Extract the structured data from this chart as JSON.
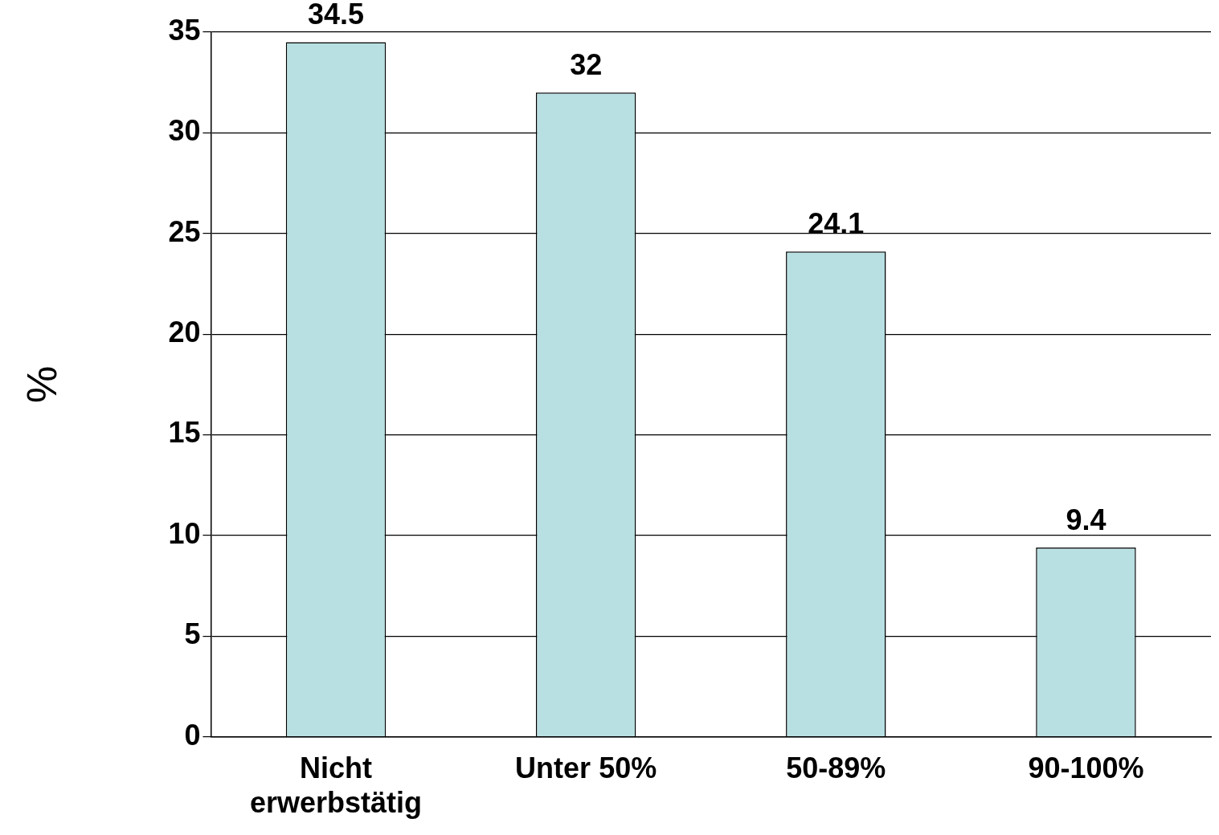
{
  "chart_data": {
    "type": "bar",
    "ylabel": "%",
    "categories": [
      "Nicht erwerbstätig",
      "Unter 50%",
      "50-89%",
      "90-100%"
    ],
    "values": [
      34.5,
      32,
      24.1,
      9.4
    ],
    "color": "#b8dfe2",
    "ylim": [
      0,
      35
    ],
    "yticks": [
      0,
      5,
      10,
      15,
      20,
      25,
      30,
      35
    ],
    "grid": "y",
    "data_labels": true,
    "legend": false
  }
}
